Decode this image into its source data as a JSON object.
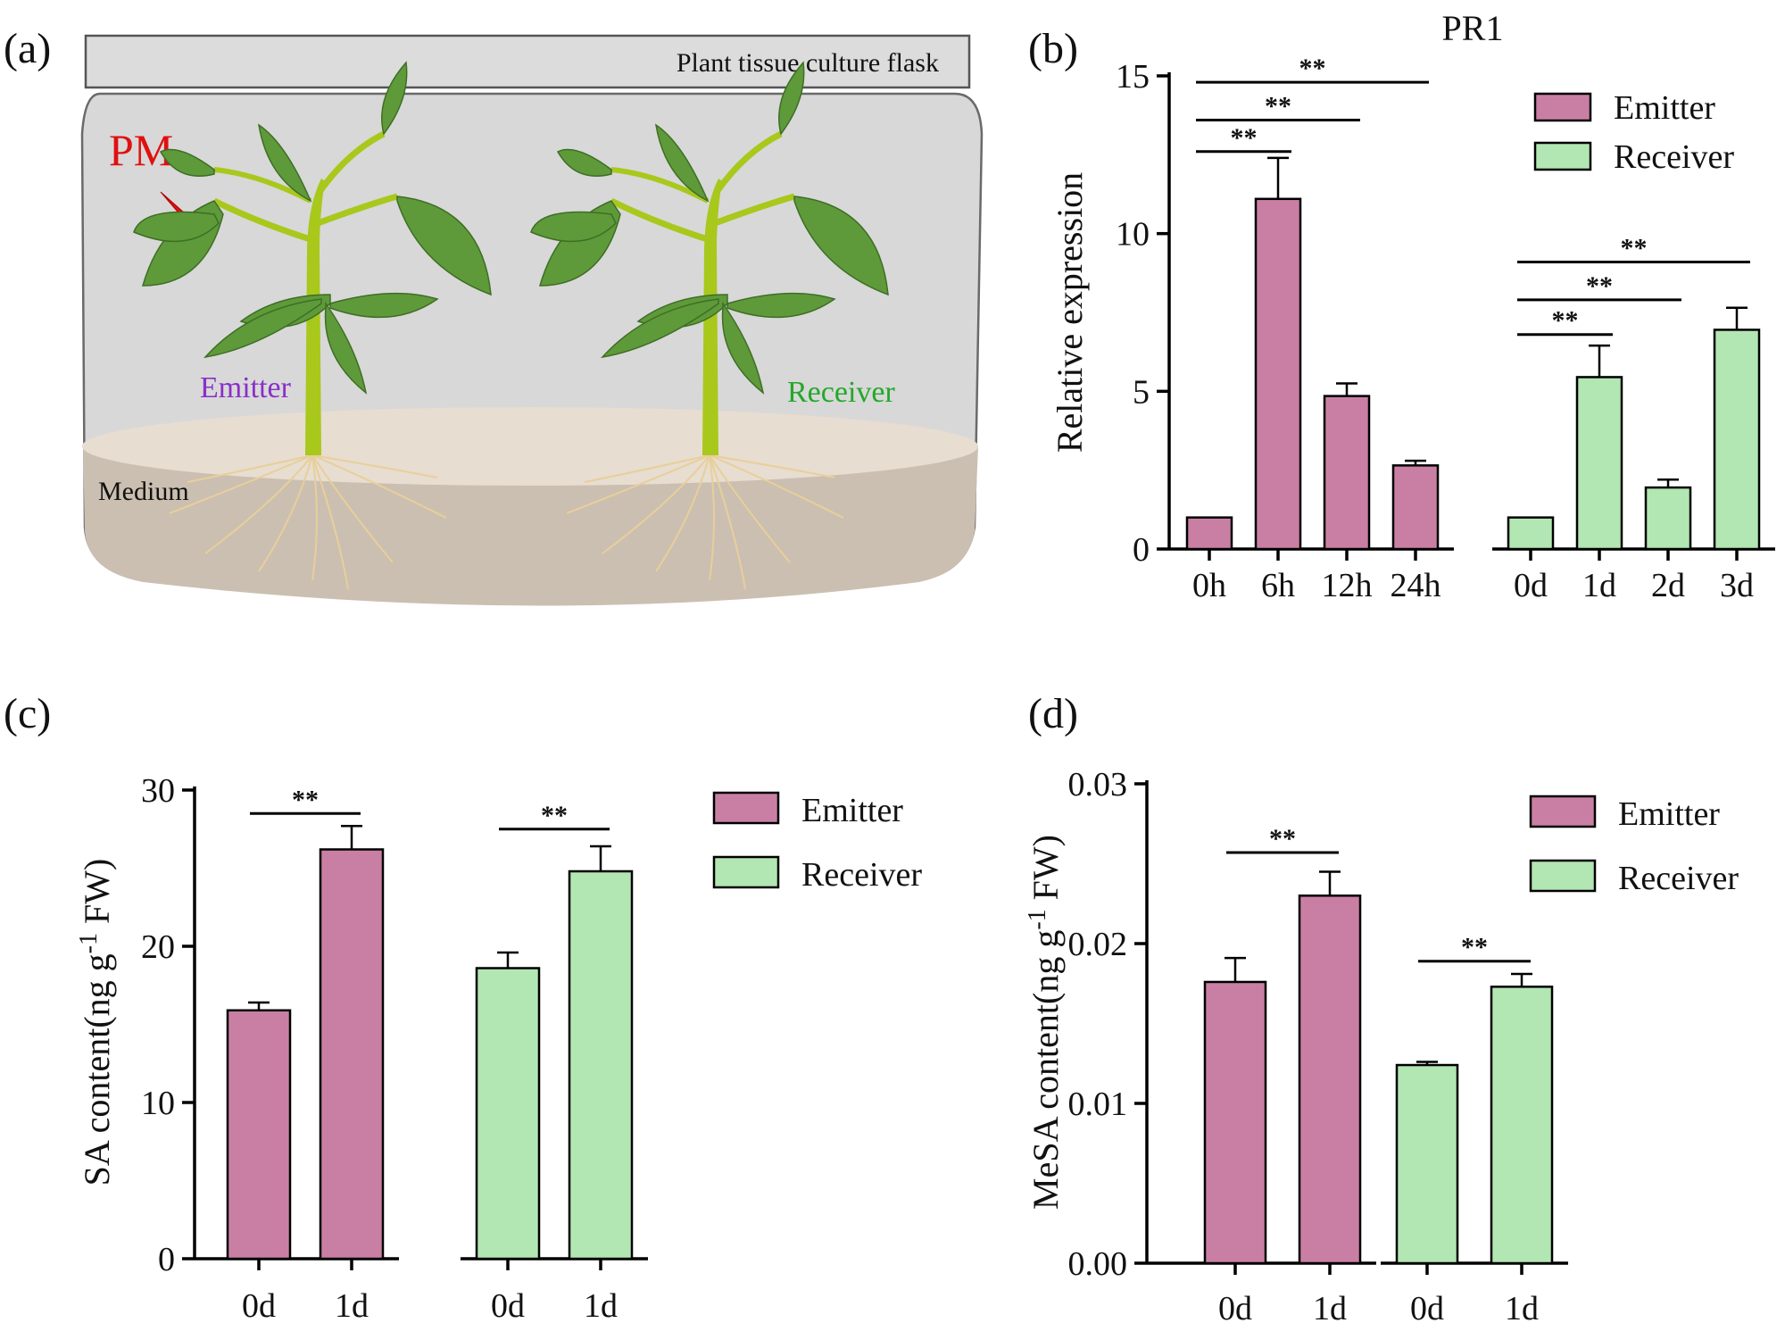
{
  "colors": {
    "emitter": "#c97fa3",
    "receiver": "#b2e6b3",
    "pm_label": "#e01010",
    "emitter_label": "#8a2fc9",
    "receiver_label": "#22a82a",
    "flask_bg": "#d8d8d8",
    "medium": "#cbbfb1",
    "leaf": "#5f9a3a",
    "stem": "#a8c81c",
    "root": "#e8cf9a"
  },
  "panel_a": {
    "letter": "(a)",
    "flask_label": "Plant tissue culture flask",
    "pm_label": "PM",
    "emitter_label": "Emitter",
    "receiver_label": "Receiver",
    "medium_label": "Medium",
    "icons": [
      "lightning-icon",
      "plant-icon",
      "plant-icon"
    ]
  },
  "chart_data": [
    {
      "id": "b",
      "panel_letter": "(b)",
      "type": "bar",
      "title": "PR1",
      "ylabel": "Relative expression",
      "ylim": [
        0,
        15
      ],
      "yticks": [
        0,
        5,
        10,
        15
      ],
      "ytick_labels": [
        "0",
        "5",
        "10",
        "15"
      ],
      "groups": [
        {
          "series": "Emitter",
          "categories": [
            "0h",
            "6h",
            "12h",
            "24h"
          ],
          "values": [
            1.0,
            11.1,
            4.85,
            2.65
          ],
          "errors": [
            0,
            1.3,
            0.4,
            0.15
          ]
        },
        {
          "series": "Receiver",
          "categories": [
            "0d",
            "1d",
            "2d",
            "3d"
          ],
          "values": [
            1.0,
            5.45,
            1.95,
            6.95
          ],
          "errors": [
            0,
            1.0,
            0.25,
            0.7
          ]
        }
      ],
      "legend": [
        "Emitter",
        "Receiver"
      ],
      "legend_position": "top-right",
      "significance": [
        {
          "from": "0h",
          "to": "6h",
          "y": 12.6,
          "label": "**"
        },
        {
          "from": "0h",
          "to": "12h",
          "y": 13.6,
          "label": "**"
        },
        {
          "from": "0h",
          "to": "24h",
          "y": 14.8,
          "label": "**"
        },
        {
          "from": "0d",
          "to": "1d",
          "y": 6.8,
          "label": "**"
        },
        {
          "from": "0d",
          "to": "2d",
          "y": 7.9,
          "label": "**"
        },
        {
          "from": "0d",
          "to": "3d",
          "y": 9.1,
          "label": "**"
        }
      ]
    },
    {
      "id": "c",
      "panel_letter": "(c)",
      "type": "bar",
      "title": "",
      "ylabel": "SA content(ng g",
      "ylabel_sup": "-1",
      "ylabel_tail": " FW)",
      "ylim": [
        0,
        30
      ],
      "yticks": [
        0,
        10,
        20,
        30
      ],
      "ytick_labels": [
        "0",
        "10",
        "20",
        "30"
      ],
      "groups": [
        {
          "series": "Emitter",
          "categories": [
            "0d",
            "1d"
          ],
          "values": [
            15.9,
            26.2
          ],
          "errors": [
            0.5,
            1.5
          ]
        },
        {
          "series": "Receiver",
          "categories": [
            "0d",
            "1d"
          ],
          "values": [
            18.6,
            24.8
          ],
          "errors": [
            1.0,
            1.6
          ]
        }
      ],
      "legend": [
        "Emitter",
        "Receiver"
      ],
      "legend_position": "top-right",
      "significance": [
        {
          "group": 0,
          "y": 28.5,
          "label": "**"
        },
        {
          "group": 1,
          "y": 27.5,
          "label": "**"
        }
      ]
    },
    {
      "id": "d",
      "panel_letter": "(d)",
      "type": "bar",
      "title": "",
      "ylabel": "MeSA content(ng g",
      "ylabel_sup": "-1",
      "ylabel_tail": " FW)",
      "ylim": [
        0,
        0.03
      ],
      "yticks": [
        0,
        0.01,
        0.02,
        0.03
      ],
      "ytick_labels": [
        "0.00",
        "0.01",
        "0.02",
        "0.03"
      ],
      "groups": [
        {
          "series": "Emitter",
          "categories": [
            "0d",
            "1d"
          ],
          "values": [
            0.0176,
            0.023
          ],
          "errors": [
            0.0015,
            0.0015
          ]
        },
        {
          "series": "Receiver",
          "categories": [
            "0d",
            "1d"
          ],
          "values": [
            0.0124,
            0.0173
          ],
          "errors": [
            0.0002,
            0.0008
          ]
        }
      ],
      "legend": [
        "Emitter",
        "Receiver"
      ],
      "legend_position": "top-right",
      "significance": [
        {
          "group": 0,
          "y": 0.0257,
          "label": "**"
        },
        {
          "group": 1,
          "y": 0.0189,
          "label": "**"
        }
      ]
    }
  ]
}
